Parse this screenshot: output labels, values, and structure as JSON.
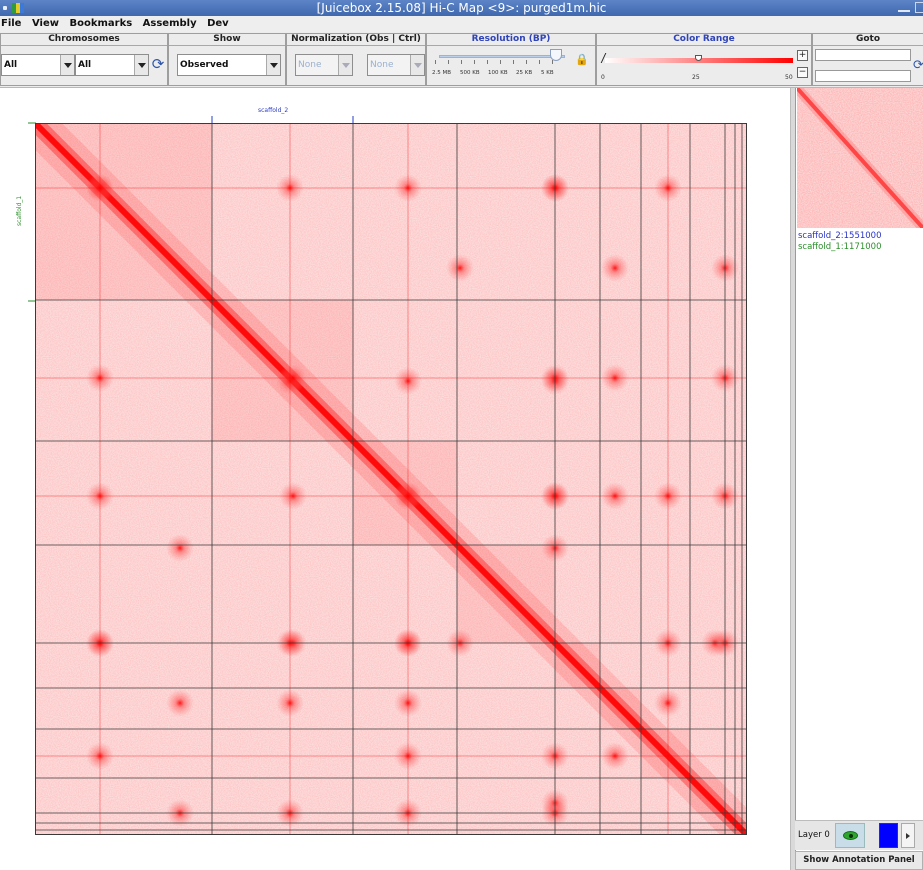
{
  "window": {
    "title": "[Juicebox 2.15.08] Hi-C Map <9>: purged1m.hic"
  },
  "menu": [
    "File",
    "View",
    "Bookmarks",
    "Assembly",
    "Dev"
  ],
  "toolbar": {
    "chromosomes": {
      "title": "Chromosomes",
      "x_value": "All",
      "y_value": "All"
    },
    "show": {
      "title": "Show",
      "value": "Observed"
    },
    "normalization": {
      "title": "Normalization (Obs  |  Ctrl)",
      "obs_value": "None",
      "ctrl_value": "None"
    },
    "resolution": {
      "title": "Resolution (BP)",
      "labels": [
        "2.5 MB",
        "500 KB",
        "100 KB",
        "25 KB",
        "5 KB"
      ]
    },
    "color_range": {
      "title": "Color Range",
      "min_label": "0",
      "mid_label": "25",
      "max_label": "50",
      "plus": "+",
      "minus": "−"
    },
    "goto": {
      "title": "Goto"
    }
  },
  "map": {
    "x_chromosome_label": "scaffold_2",
    "y_chromosome_label": "scaffold_1",
    "colors": {
      "heat": "#ff0000",
      "grid": "#3a3a3a",
      "background": "#ffffff"
    }
  },
  "side_panel": {
    "x_position": "scaffold_2:1551000",
    "y_position": "scaffold_1:1171000",
    "layer_label": "Layer 0",
    "layer_color": "#0000ff",
    "annotation_button": "Show Annotation Panel"
  }
}
